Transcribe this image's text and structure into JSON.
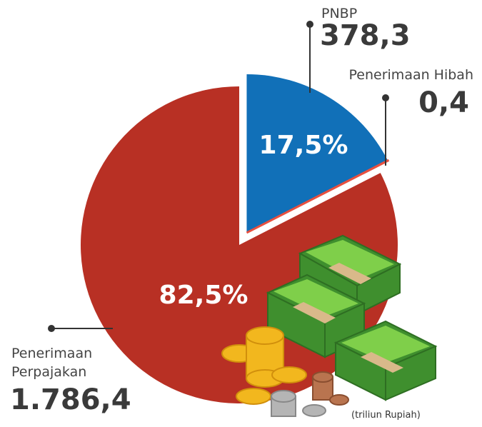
{
  "chart_data": {
    "type": "pie",
    "categories": [
      "PNBP",
      "Penerimaan Hibah",
      "Penerimaan Perpajakan"
    ],
    "values": [
      378.3,
      0.4,
      1786.4
    ],
    "value_labels": [
      "378,3",
      "0,4",
      "1.786,4"
    ],
    "percent_labels": [
      "17,5%",
      null,
      "82,5%"
    ],
    "colors": [
      "#1170b8",
      "#e8503f",
      "#b83024"
    ],
    "unit_note": "(triliun Rupiah)"
  }
}
